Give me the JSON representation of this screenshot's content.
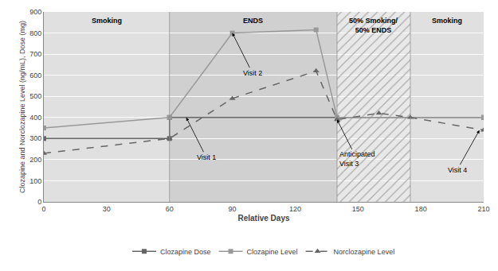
{
  "chart_data": {
    "type": "line",
    "xlabel": "Relative Days",
    "ylabel": "Clozapine and Norclozapine Level (ng/mL), Dose (mg)",
    "xlim": [
      0,
      210
    ],
    "ylim": [
      0,
      900
    ],
    "xticks": [
      0,
      30,
      60,
      90,
      120,
      150,
      180,
      210
    ],
    "yticks": [
      0,
      100,
      200,
      300,
      400,
      500,
      600,
      700,
      800,
      900
    ],
    "grid": "y",
    "legend": "bottom",
    "series": [
      {
        "name": "Clozapine Dose",
        "color": "#666666",
        "marker": "square",
        "line_style": "solid",
        "x": [
          0,
          60,
          60,
          210
        ],
        "values": [
          300,
          300,
          400,
          400
        ]
      },
      {
        "name": "Clozapine Level",
        "color": "#999999",
        "marker": "square",
        "line_style": "solid",
        "x": [
          0,
          60,
          90,
          130,
          140,
          210
        ],
        "values": [
          350,
          400,
          800,
          815,
          400,
          400
        ]
      },
      {
        "name": "Norclozapine Level",
        "color": "#666666",
        "marker": "triangle-up",
        "line_style": "dash",
        "x": [
          0,
          60,
          90,
          130,
          140,
          160,
          175,
          210
        ],
        "values": [
          230,
          300,
          490,
          620,
          390,
          420,
          400,
          340
        ]
      }
    ],
    "regions": [
      {
        "xmin": 0,
        "xmax": 60,
        "label": "Smoking",
        "color": "#e0e0e0",
        "hatch": false
      },
      {
        "xmin": 60,
        "xmax": 140,
        "label": "ENDS",
        "color": "#d0d0d0",
        "hatch": false
      },
      {
        "xmin": 140,
        "xmax": 175,
        "label": "50% Smoking/\n50% ENDS",
        "color": "#e8e8e8",
        "hatch": true
      },
      {
        "xmin": 175,
        "xmax": 210,
        "label": "Smoking",
        "color": "#e0e0e0",
        "hatch": false
      }
    ],
    "annotations": [
      {
        "text": "Visit 1",
        "x": 68,
        "y": 400
      },
      {
        "text": "Visit 2",
        "x": 90,
        "y": 800
      },
      {
        "text": "Anticipated\nVisit 3",
        "x": 140,
        "y": 390
      },
      {
        "text": "Visit 4",
        "x": 208,
        "y": 340
      }
    ]
  }
}
